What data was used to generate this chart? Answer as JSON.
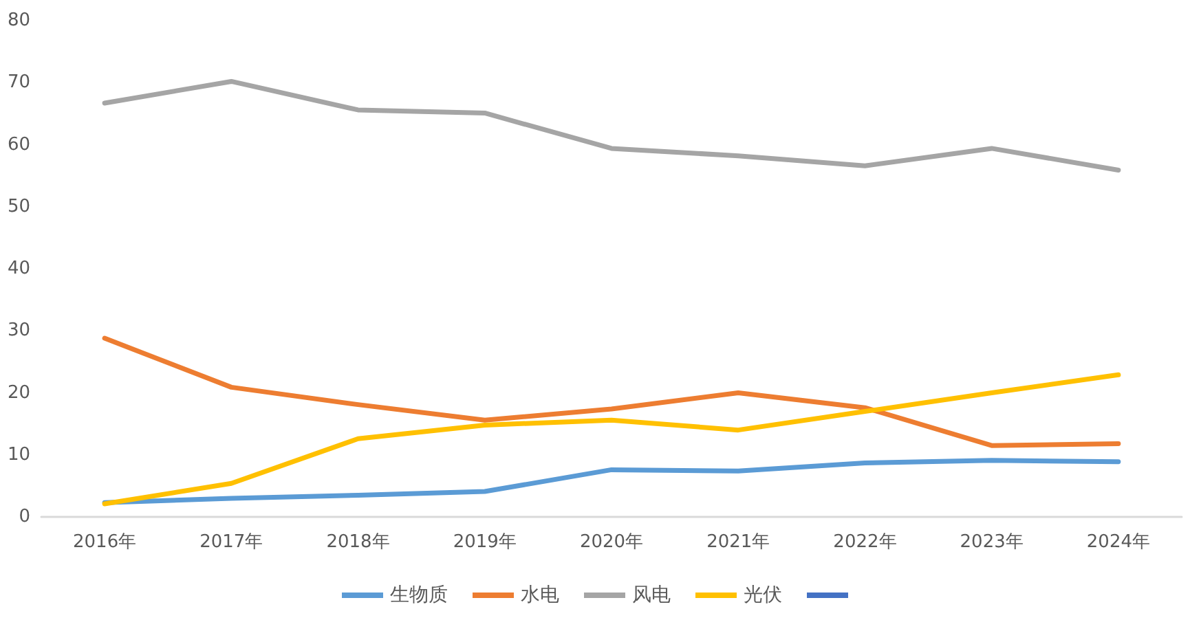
{
  "chart_data": {
    "type": "line",
    "categories": [
      "2016年",
      "2017年",
      "2018年",
      "2019年",
      "2020年",
      "2021年",
      "2022年",
      "2023年",
      "2024年"
    ],
    "series": [
      {
        "name": "生物质",
        "color": "#5b9bd5",
        "values": [
          2.3,
          3.0,
          3.5,
          4.1,
          7.6,
          7.4,
          8.7,
          9.1,
          8.9
        ]
      },
      {
        "name": "水电",
        "color": "#ed7d31",
        "values": [
          28.8,
          20.9,
          18.1,
          15.6,
          17.4,
          20.0,
          17.6,
          11.5,
          11.8
        ]
      },
      {
        "name": "风电",
        "color": "#a5a5a5",
        "values": [
          66.7,
          70.2,
          65.6,
          65.1,
          59.4,
          58.2,
          56.6,
          59.4,
          55.9
        ]
      },
      {
        "name": "光伏",
        "color": "#ffc000",
        "values": [
          2.1,
          5.4,
          12.6,
          14.8,
          15.6,
          14.0,
          17.0,
          20.0,
          22.9
        ]
      },
      {
        "color": "#4472c4",
        "values": [
          null,
          null,
          null,
          null,
          null,
          null,
          null,
          null,
          null
        ]
      }
    ],
    "ylim": [
      0,
      80
    ],
    "yticks": [
      0,
      10,
      20,
      30,
      40,
      50,
      60,
      70,
      80
    ],
    "grid": false,
    "legend": "bottom",
    "marker": "none",
    "line_style": "solid"
  }
}
